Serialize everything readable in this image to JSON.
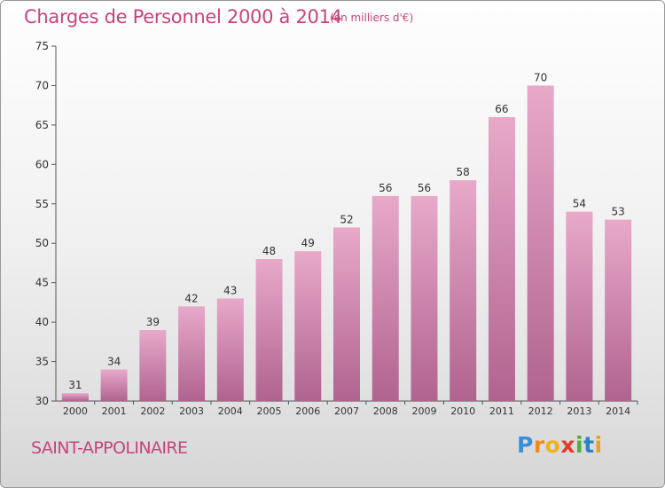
{
  "header": {
    "title": "Charges de Personnel 2000 à 2014",
    "subtitle": "(en milliers d'€)"
  },
  "footer": {
    "city": "SAINT-APPOLINAIRE",
    "logo": "Proxiti"
  },
  "colors": {
    "accent": "#c8437e",
    "bar_top": "#e8a9c9",
    "bar_bottom": "#b0638f"
  },
  "chart_data": {
    "type": "bar",
    "categories": [
      "2000",
      "2001",
      "2002",
      "2003",
      "2004",
      "2005",
      "2006",
      "2007",
      "2008",
      "2009",
      "2010",
      "2011",
      "2012",
      "2013",
      "2014"
    ],
    "values": [
      31,
      34,
      39,
      42,
      43,
      48,
      49,
      52,
      56,
      56,
      58,
      66,
      70,
      54,
      53
    ],
    "title": "Charges de Personnel 2000 à 2014",
    "subtitle": "(en milliers d'€)",
    "xlabel": "",
    "ylabel": "",
    "ylim": [
      30,
      75
    ],
    "yticks": [
      30,
      35,
      40,
      45,
      50,
      55,
      60,
      65,
      70,
      75
    ],
    "grid": false,
    "legend": "none",
    "data_labels": true
  }
}
